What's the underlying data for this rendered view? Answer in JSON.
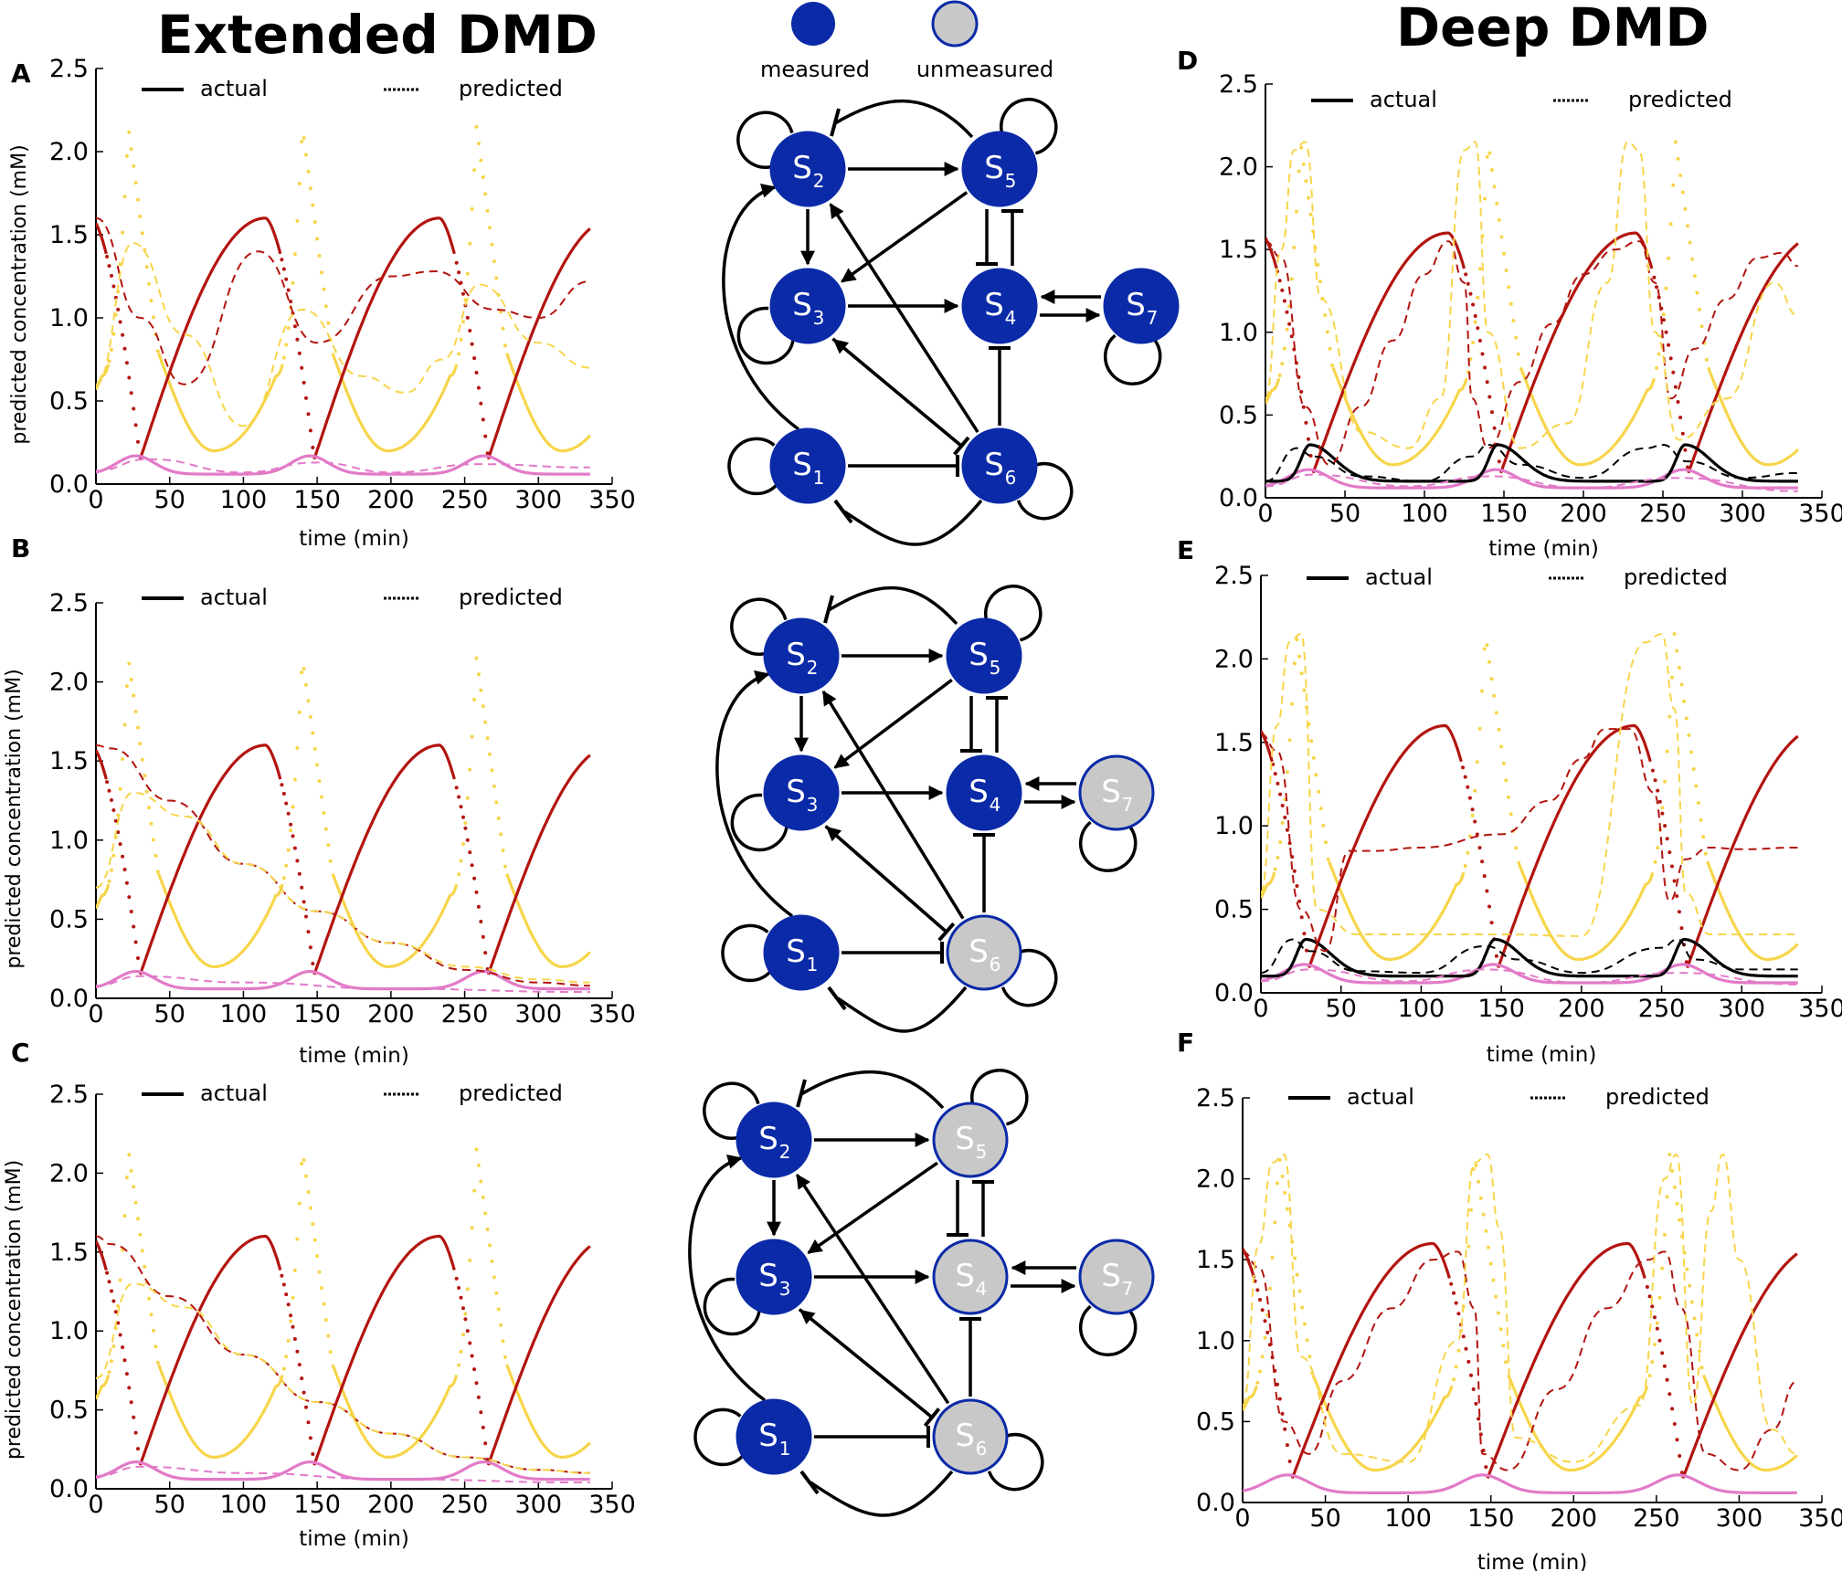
{
  "titles": {
    "left": "Extended DMD",
    "right": "Deep DMD"
  },
  "network_legend": {
    "measured": "measured",
    "unmeasured": "unmeasured"
  },
  "colors": {
    "measured": "#0a2aa8",
    "unmeasured": "#c8c8c8",
    "red": "#b3140f",
    "yellow": "#f7d54a",
    "pink": "#e27ac8",
    "black": "#000000"
  },
  "axis_common": {
    "ylabel": "predicted concentration (mM)",
    "xlabel": "time (min)",
    "actual_label": "actual",
    "predicted_label": "predicted"
  },
  "networks": [
    {
      "panel": "A",
      "unmeasured": []
    },
    {
      "panel": "B",
      "unmeasured": [
        "S6",
        "S7"
      ]
    },
    {
      "panel": "C",
      "unmeasured": [
        "S4",
        "S5",
        "S6",
        "S7"
      ]
    }
  ],
  "chart_data": [
    {
      "panel": "A",
      "type": "line",
      "xlim": [
        0,
        350
      ],
      "ylim": [
        0,
        2.5
      ],
      "xticks": [
        0,
        50,
        100,
        150,
        200,
        250,
        300,
        350
      ],
      "yticks": [
        0.0,
        0.5,
        1.0,
        1.5,
        2.0,
        2.5
      ],
      "series": [
        {
          "color": "red",
          "style": "predicted",
          "x": [
            0,
            30,
            60,
            110,
            150,
            200,
            230,
            270,
            300,
            335
          ],
          "y": [
            1.6,
            1.0,
            0.6,
            1.4,
            0.85,
            1.25,
            1.28,
            1.05,
            1.0,
            1.22
          ]
        },
        {
          "color": "yellow",
          "style": "predicted",
          "x": [
            0,
            25,
            60,
            100,
            140,
            180,
            210,
            235,
            260,
            300,
            335
          ],
          "y": [
            0.6,
            1.45,
            0.9,
            0.35,
            1.05,
            0.65,
            0.55,
            0.75,
            1.2,
            0.85,
            0.7
          ]
        },
        {
          "color": "pink",
          "style": "predicted",
          "x": [
            0,
            35,
            100,
            150,
            200,
            260,
            335
          ],
          "y": [
            0.08,
            0.15,
            0.07,
            0.13,
            0.07,
            0.12,
            0.1
          ]
        }
      ]
    },
    {
      "panel": "B",
      "type": "line",
      "xlim": [
        0,
        350
      ],
      "ylim": [
        0,
        2.5
      ],
      "xticks": [
        0,
        50,
        100,
        150,
        200,
        250,
        300,
        350
      ],
      "yticks": [
        0.0,
        0.5,
        1.0,
        1.5,
        2.0,
        2.5
      ],
      "series": [
        {
          "color": "red",
          "style": "predicted",
          "x": [
            0,
            10,
            50,
            100,
            150,
            200,
            250,
            300,
            335
          ],
          "y": [
            1.6,
            1.58,
            1.25,
            0.85,
            0.55,
            0.35,
            0.18,
            0.1,
            0.08
          ]
        },
        {
          "color": "yellow",
          "style": "predicted",
          "x": [
            0,
            25,
            60,
            100,
            150,
            200,
            250,
            300,
            335
          ],
          "y": [
            0.7,
            1.3,
            1.15,
            0.85,
            0.55,
            0.35,
            0.2,
            0.12,
            0.1
          ]
        },
        {
          "color": "pink",
          "style": "predicted",
          "x": [
            0,
            30,
            100,
            200,
            335
          ],
          "y": [
            0.08,
            0.14,
            0.1,
            0.06,
            0.04
          ]
        }
      ]
    },
    {
      "panel": "C",
      "type": "line",
      "xlim": [
        0,
        350
      ],
      "ylim": [
        0,
        2.5
      ],
      "xticks": [
        0,
        50,
        100,
        150,
        200,
        250,
        300,
        350
      ],
      "yticks": [
        0.0,
        0.5,
        1.0,
        1.5,
        2.0,
        2.5
      ],
      "series": [
        {
          "color": "red",
          "style": "predicted",
          "x": [
            0,
            10,
            50,
            100,
            150,
            200,
            250,
            300,
            335
          ],
          "y": [
            1.6,
            1.55,
            1.22,
            0.85,
            0.55,
            0.35,
            0.2,
            0.12,
            0.1
          ]
        },
        {
          "color": "yellow",
          "style": "predicted",
          "x": [
            0,
            25,
            60,
            100,
            150,
            200,
            250,
            300,
            335
          ],
          "y": [
            0.7,
            1.3,
            1.15,
            0.85,
            0.55,
            0.35,
            0.2,
            0.12,
            0.1
          ]
        },
        {
          "color": "pink",
          "style": "predicted",
          "x": [
            0,
            30,
            100,
            200,
            335
          ],
          "y": [
            0.08,
            0.14,
            0.1,
            0.06,
            0.04
          ]
        }
      ]
    },
    {
      "panel": "D",
      "type": "line",
      "xlim": [
        0,
        350
      ],
      "ylim": [
        0,
        2.5
      ],
      "xticks": [
        0,
        50,
        100,
        150,
        200,
        250,
        300,
        350
      ],
      "yticks": [
        0.0,
        0.5,
        1.0,
        1.5,
        2.0,
        2.5
      ],
      "has_black": true,
      "series": [
        {
          "color": "red",
          "style": "predicted",
          "x": [
            0,
            10,
            25,
            40,
            60,
            80,
            100,
            115,
            125,
            130,
            140,
            160,
            180,
            200,
            220,
            235,
            245,
            255,
            270,
            290,
            310,
            325,
            335
          ],
          "y": [
            1.55,
            1.45,
            0.55,
            0.2,
            0.55,
            0.95,
            1.35,
            1.55,
            1.3,
            0.6,
            0.3,
            0.7,
            1.05,
            1.35,
            1.5,
            1.55,
            1.3,
            0.6,
            0.9,
            1.2,
            1.45,
            1.48,
            1.4
          ]
        },
        {
          "color": "yellow",
          "style": "predicted",
          "x": [
            0,
            10,
            18,
            25,
            35,
            60,
            90,
            110,
            125,
            132,
            140,
            160,
            190,
            215,
            228,
            235,
            245,
            260,
            290,
            320,
            335
          ],
          "y": [
            0.6,
            1.5,
            2.1,
            2.15,
            1.2,
            0.4,
            0.3,
            0.6,
            2.1,
            2.15,
            1.0,
            0.3,
            0.45,
            1.3,
            2.15,
            2.1,
            1.0,
            0.35,
            0.6,
            1.3,
            1.1
          ]
        },
        {
          "color": "black",
          "style": "predicted",
          "x": [
            0,
            20,
            30,
            60,
            100,
            130,
            140,
            160,
            200,
            240,
            250,
            265,
            300,
            335
          ],
          "y": [
            0.1,
            0.3,
            0.25,
            0.13,
            0.1,
            0.25,
            0.32,
            0.2,
            0.12,
            0.3,
            0.32,
            0.22,
            0.12,
            0.15
          ]
        },
        {
          "color": "pink",
          "style": "predicted",
          "x": [
            0,
            30,
            90,
            140,
            200,
            260,
            335
          ],
          "y": [
            0.07,
            0.14,
            0.07,
            0.13,
            0.06,
            0.12,
            0.04
          ]
        }
      ]
    },
    {
      "panel": "E",
      "type": "line",
      "xlim": [
        0,
        350
      ],
      "ylim": [
        0,
        2.5
      ],
      "xticks": [
        0,
        50,
        100,
        150,
        200,
        250,
        300,
        350
      ],
      "yticks": [
        0.0,
        0.5,
        1.0,
        1.5,
        2.0,
        2.5
      ],
      "has_black": true,
      "series": [
        {
          "color": "red",
          "style": "predicted",
          "x": [
            0,
            10,
            25,
            40,
            55,
            70,
            100,
            150,
            180,
            200,
            215,
            230,
            245,
            255,
            265,
            280,
            300,
            335
          ],
          "y": [
            1.55,
            1.45,
            0.5,
            0.25,
            0.85,
            0.85,
            0.87,
            0.95,
            1.15,
            1.4,
            1.58,
            1.58,
            1.2,
            0.55,
            0.8,
            0.87,
            0.86,
            0.87
          ]
        },
        {
          "color": "yellow",
          "style": "predicted",
          "x": [
            0,
            10,
            18,
            25,
            35,
            60,
            100,
            150,
            200,
            240,
            250,
            258,
            265,
            280,
            335
          ],
          "y": [
            0.6,
            1.6,
            2.1,
            2.15,
            0.5,
            0.35,
            0.35,
            0.35,
            0.34,
            2.1,
            2.15,
            1.7,
            0.6,
            0.35,
            0.35
          ]
        },
        {
          "color": "black",
          "style": "predicted",
          "x": [
            0,
            20,
            30,
            60,
            100,
            140,
            160,
            200,
            250,
            260,
            270,
            300,
            335
          ],
          "y": [
            0.12,
            0.32,
            0.25,
            0.13,
            0.12,
            0.28,
            0.2,
            0.12,
            0.27,
            0.32,
            0.2,
            0.14,
            0.14
          ]
        },
        {
          "color": "pink",
          "style": "predicted",
          "x": [
            0,
            30,
            90,
            140,
            200,
            260,
            335
          ],
          "y": [
            0.07,
            0.14,
            0.07,
            0.14,
            0.06,
            0.12,
            0.05
          ]
        }
      ]
    },
    {
      "panel": "F",
      "type": "line",
      "xlim": [
        0,
        350
      ],
      "ylim": [
        0,
        2.5
      ],
      "xticks": [
        0,
        50,
        100,
        150,
        200,
        250,
        300,
        350
      ],
      "yticks": [
        0.0,
        0.5,
        1.0,
        1.5,
        2.0,
        2.5
      ],
      "series": [
        {
          "color": "red",
          "style": "predicted",
          "x": [
            0,
            10,
            25,
            40,
            60,
            90,
            115,
            130,
            140,
            145,
            160,
            190,
            220,
            245,
            255,
            265,
            280,
            300,
            320,
            335
          ],
          "y": [
            1.55,
            1.45,
            0.5,
            0.3,
            0.75,
            1.2,
            1.5,
            1.55,
            1.2,
            0.3,
            0.2,
            0.7,
            1.2,
            1.5,
            1.55,
            1.2,
            0.3,
            0.2,
            0.45,
            0.75
          ]
        },
        {
          "color": "yellow",
          "style": "predicted",
          "x": [
            0,
            10,
            18,
            25,
            35,
            60,
            100,
            130,
            140,
            148,
            155,
            165,
            200,
            240,
            255,
            262,
            272,
            283,
            290,
            300,
            320,
            335
          ],
          "y": [
            0.6,
            1.6,
            2.1,
            2.15,
            0.9,
            0.3,
            0.25,
            1.0,
            2.1,
            2.15,
            1.7,
            0.4,
            0.25,
            0.6,
            2.0,
            2.15,
            0.6,
            1.8,
            2.15,
            1.5,
            0.45,
            0.3
          ]
        }
      ]
    }
  ]
}
